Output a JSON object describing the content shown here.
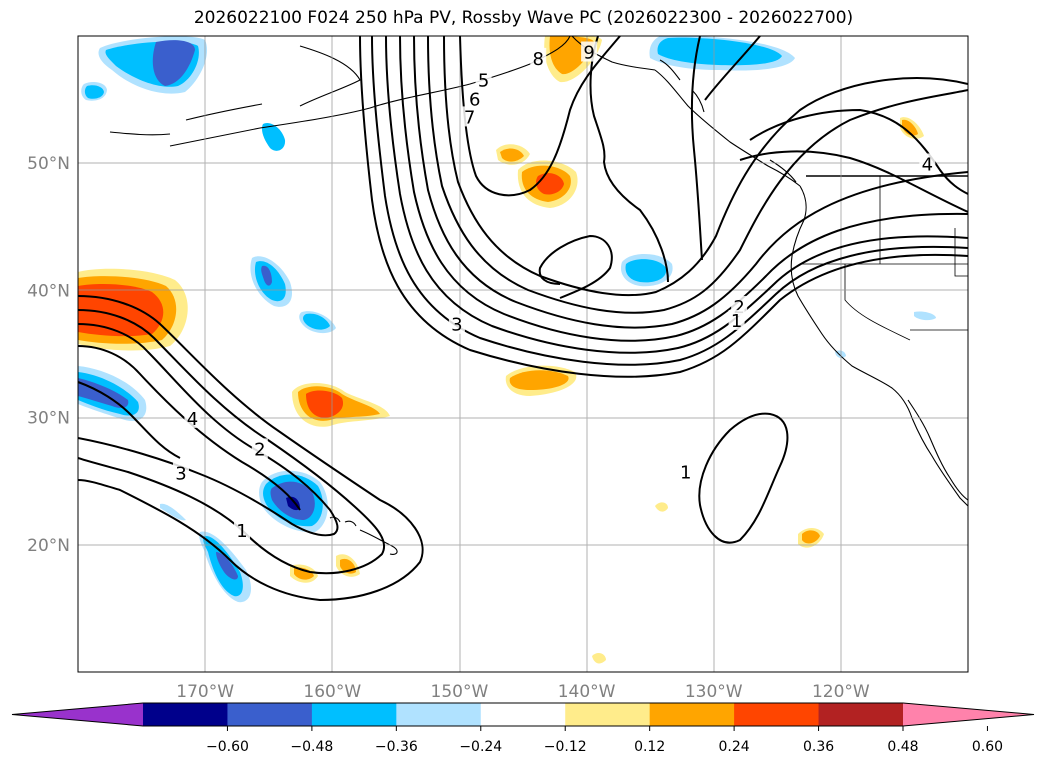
{
  "title": "2026022100 F024 250 hPa PV, Rossby Wave PC (2026022300 - 2026022700)",
  "map": {
    "extent": {
      "lon_min": -180,
      "lon_max": -110,
      "lat_min": 10,
      "lat_max": 60
    },
    "lat_ticks": [
      {
        "lat": 50,
        "label": "50°N"
      },
      {
        "lat": 40,
        "label": "40°N"
      },
      {
        "lat": 30,
        "label": "30°N"
      },
      {
        "lat": 20,
        "label": "20°N"
      }
    ],
    "lon_ticks": [
      {
        "lon": -170,
        "label": "170°W"
      },
      {
        "lon": -160,
        "label": "160°W"
      },
      {
        "lon": -150,
        "label": "150°W"
      },
      {
        "lon": -140,
        "label": "140°W"
      },
      {
        "lon": -130,
        "label": "130°W"
      },
      {
        "lon": -120,
        "label": "120°W"
      }
    ],
    "gridlines": true,
    "contour_labels": [
      {
        "text": "7",
        "lon": -149.2,
        "lat": 53.6
      },
      {
        "text": "6",
        "lon": -148.8,
        "lat": 55.0
      },
      {
        "text": "5",
        "lon": -148.1,
        "lat": 56.5
      },
      {
        "text": "8",
        "lon": -143.8,
        "lat": 58.2
      },
      {
        "text": "9",
        "lon": -139.8,
        "lat": 58.7
      },
      {
        "text": "4",
        "lon": -113.2,
        "lat": 49.9
      },
      {
        "text": "2",
        "lon": -128.0,
        "lat": 38.7
      },
      {
        "text": "1",
        "lon": -128.2,
        "lat": 37.6
      },
      {
        "text": "3",
        "lon": -150.2,
        "lat": 37.3
      },
      {
        "text": "4",
        "lon": -171.0,
        "lat": 29.9
      },
      {
        "text": "2",
        "lon": -165.7,
        "lat": 27.5
      },
      {
        "text": "3",
        "lon": -171.9,
        "lat": 25.6
      },
      {
        "text": "1",
        "lon": -167.1,
        "lat": 21.1
      },
      {
        "text": "1",
        "lon": -132.2,
        "lat": 25.7
      }
    ]
  },
  "colorbar": {
    "levels": [
      -0.6,
      -0.48,
      -0.36,
      -0.24,
      -0.12,
      0.12,
      0.24,
      0.36,
      0.48,
      0.6
    ],
    "labels": [
      "−0.60",
      "−0.48",
      "−0.36",
      "−0.24",
      "−0.12",
      "0.12",
      "0.24",
      "0.36",
      "0.48",
      "0.60"
    ],
    "colors": [
      "#9932cc",
      "#00008b",
      "#3a5fcd",
      "#00bfff",
      "#b0e2ff",
      "#ffffff",
      "#ffec8b",
      "#ffa500",
      "#ff4500",
      "#b22222",
      "#ff82ab"
    ]
  }
}
